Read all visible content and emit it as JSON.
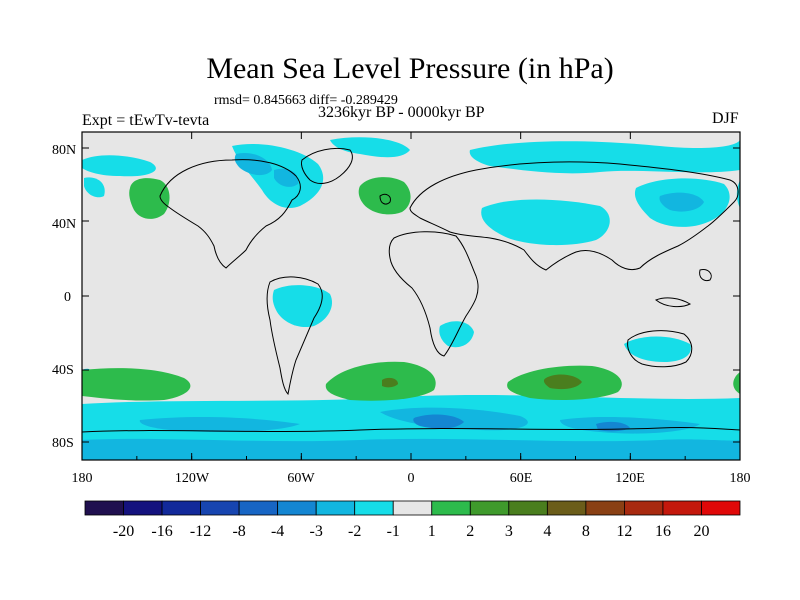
{
  "header": {
    "title": "Mean Sea Level Pressure (in hPa)",
    "stats": "rmsd= 0.845663  diff= -0.289429",
    "experiment": "Expt = tEwTv-tevta",
    "period": "3236kyr BP - 0000kyr BP",
    "season": "DJF"
  },
  "axes": {
    "y_ticks": [
      "80N",
      "40N",
      "0",
      "40S",
      "80S"
    ],
    "x_ticks": [
      "180",
      "120W",
      "60W",
      "0",
      "60E",
      "120E",
      "180"
    ]
  },
  "colorbar": {
    "labels": [
      "-20",
      "-16",
      "-12",
      "-8",
      "-4",
      "-3",
      "-2",
      "-1",
      "1",
      "2",
      "3",
      "4",
      "8",
      "12",
      "16",
      "20"
    ],
    "colors": [
      "#20104f",
      "#14127e",
      "#12299a",
      "#1745b0",
      "#1765c4",
      "#1486d2",
      "#12b6e0",
      "#16dde8",
      "#e6e6e6",
      "#2dbb4c",
      "#3f9a2c",
      "#4a7e1e",
      "#6b5d1a",
      "#8a4014",
      "#a82a10",
      "#c4180c",
      "#e00808"
    ]
  },
  "map_colors": {
    "background": "#e6e6e6",
    "cyan": "#16dde8",
    "light_blue": "#12b6e0",
    "blue": "#1486d2",
    "green": "#2dbb4c",
    "olive": "#4a7e1e",
    "dark_olive": "#6b5d1a"
  }
}
